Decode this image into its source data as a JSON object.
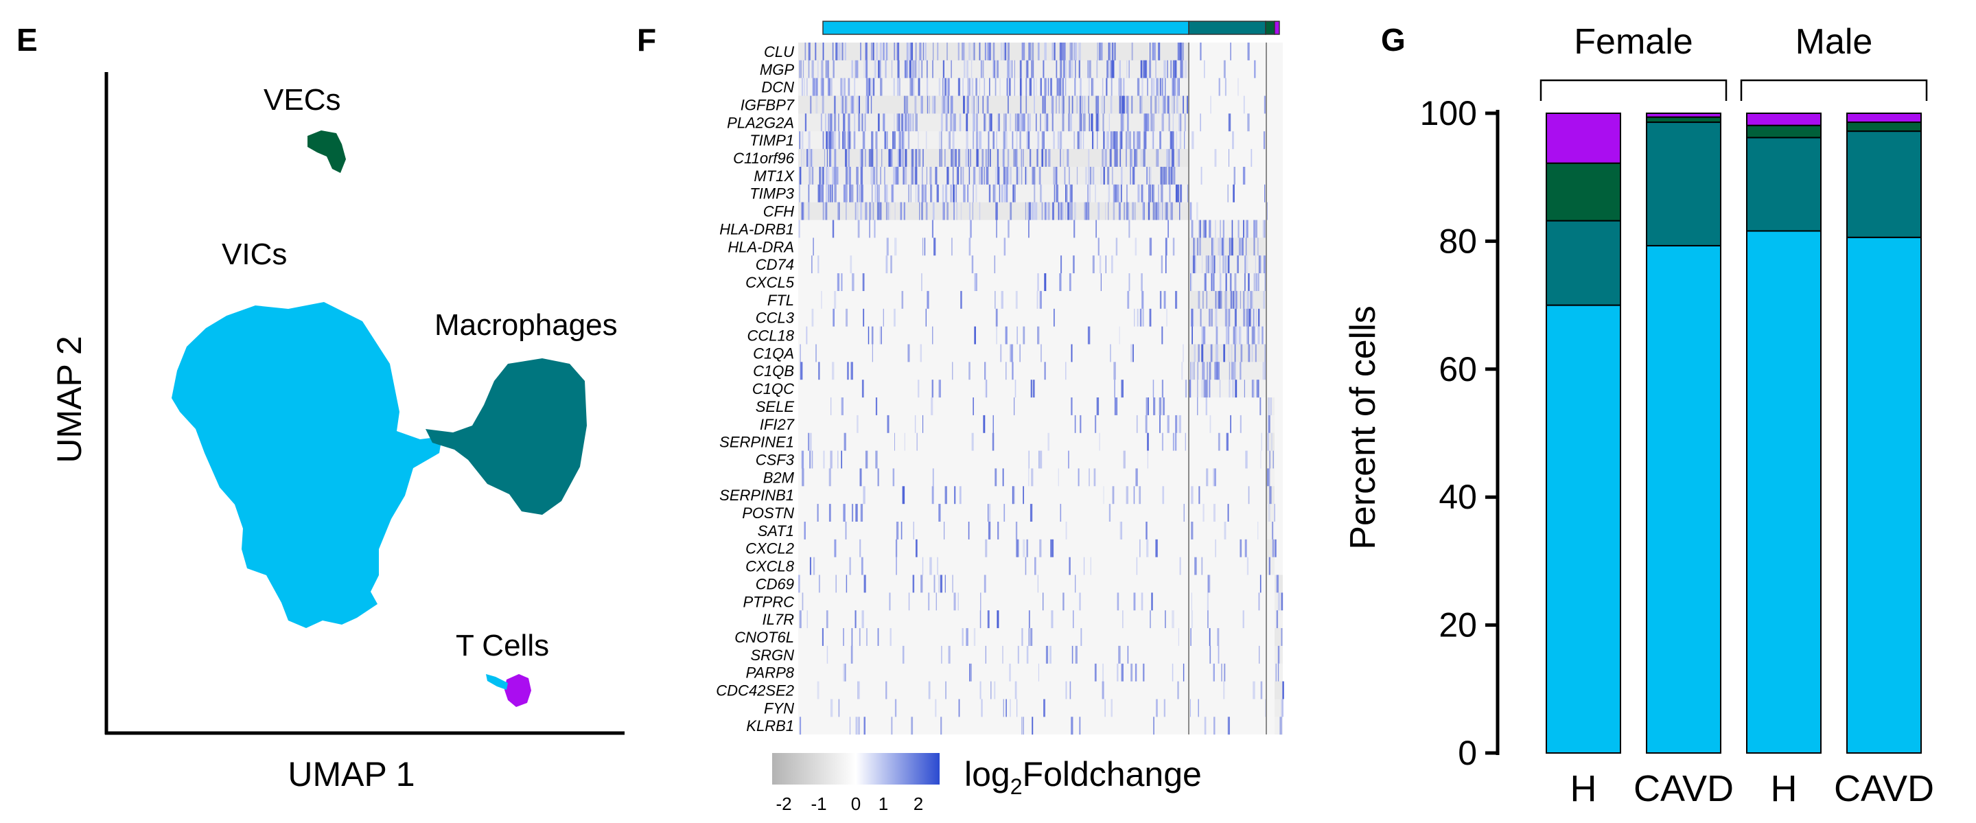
{
  "panels": {
    "E": {
      "letter": "E",
      "xlabel": "UMAP 1",
      "ylabel": "UMAP 2",
      "cluster_labels": [
        "VECs",
        "VICs",
        "Macrophages",
        "T Cells"
      ]
    },
    "F": {
      "letter": "F",
      "genes": [
        "CLU",
        "MGP",
        "DCN",
        "IGFBP7",
        "PLA2G2A",
        "TIMP1",
        "C11orf96",
        "MT1X",
        "TIMP3",
        "CFH",
        "HLA-DRB1",
        "HLA-DRA",
        "CD74",
        "CXCL5",
        "FTL",
        "CCL3",
        "CCL18",
        "C1QA",
        "C1QB",
        "C1QC",
        "SELE",
        "IFI27",
        "SERPINE1",
        "CSF3",
        "B2M",
        "SERPINB1",
        "POSTN",
        "SAT1",
        "CXCL2",
        "CXCL8",
        "CD69",
        "PTPRC",
        "IL7R",
        "CNOT6L",
        "SRGN",
        "PARP8",
        "CDC42SE2",
        "FYN",
        "KLRB1"
      ],
      "colorbar_ticks": [
        "-2",
        "-1",
        "0",
        "1",
        "2"
      ],
      "colorbar_label_prefix": "log",
      "colorbar_label_sub": "2",
      "colorbar_label_suffix": "Foldchange"
    },
    "G": {
      "letter": "G"
    }
  },
  "colors": {
    "vics": "#00bff3",
    "macrophages": "#00767f",
    "vecs": "#00603a",
    "tcells": "#aa0df0",
    "heat_low": "#b3b3b3",
    "heat_mid": "#ffffff",
    "heat_high": "#2b4ad0"
  },
  "chart_data": {
    "type": "bar",
    "stacked": true,
    "categories": [
      "H",
      "CAVD",
      "H",
      "CAVD"
    ],
    "groups": [
      {
        "name": "Female",
        "categories": [
          0,
          1
        ]
      },
      {
        "name": "Male",
        "categories": [
          2,
          3
        ]
      }
    ],
    "series": [
      {
        "color": "#00bff3",
        "values": [
          70,
          79.3,
          81.6,
          80.6
        ]
      },
      {
        "color": "#00767f",
        "values": [
          13.2,
          19.3,
          14.6,
          16.6
        ]
      },
      {
        "color": "#00603a",
        "values": [
          9,
          0.8,
          1.9,
          1.4
        ]
      },
      {
        "color": "#aa0df0",
        "values": [
          7.8,
          0.6,
          1.9,
          1.4
        ]
      }
    ],
    "ylabel": "Percent of cells",
    "yticks": [
      0,
      20,
      40,
      60,
      80,
      100
    ],
    "ylim": [
      0,
      100
    ],
    "grid": false
  }
}
